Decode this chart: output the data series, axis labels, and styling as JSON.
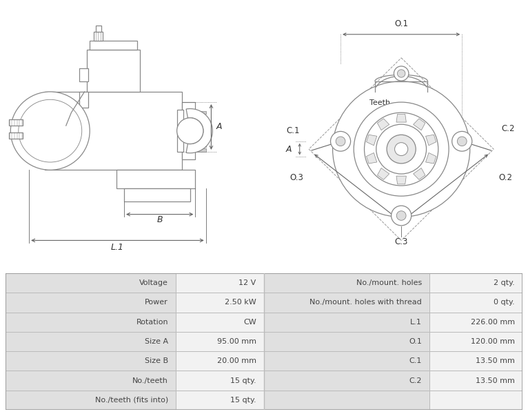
{
  "bg_color": "#ffffff",
  "line_color": "#888888",
  "dim_color": "#666666",
  "table_rows": [
    {
      "left_label": "Voltage",
      "left_val": "12 V",
      "right_label": "No./mount. holes",
      "right_val": "2 qty."
    },
    {
      "left_label": "Power",
      "left_val": "2.50 kW",
      "right_label": "No./mount. holes with thread",
      "right_val": "0 qty."
    },
    {
      "left_label": "Rotation",
      "left_val": "CW",
      "right_label": "L.1",
      "right_val": "226.00 mm"
    },
    {
      "left_label": "Size A",
      "left_val": "95.00 mm",
      "right_label": "O.1",
      "right_val": "120.00 mm"
    },
    {
      "left_label": "Size B",
      "left_val": "20.00 mm",
      "right_label": "C.1",
      "right_val": "13.50 mm"
    },
    {
      "left_label": "No./teeth",
      "left_val": "15 qty.",
      "right_label": "C.2",
      "right_val": "13.50 mm"
    },
    {
      "left_label": "No./teeth (fits into)",
      "left_val": "15 qty.",
      "right_label": "",
      "right_val": ""
    }
  ],
  "font_size_table": 8,
  "font_size_dim": 7.5
}
